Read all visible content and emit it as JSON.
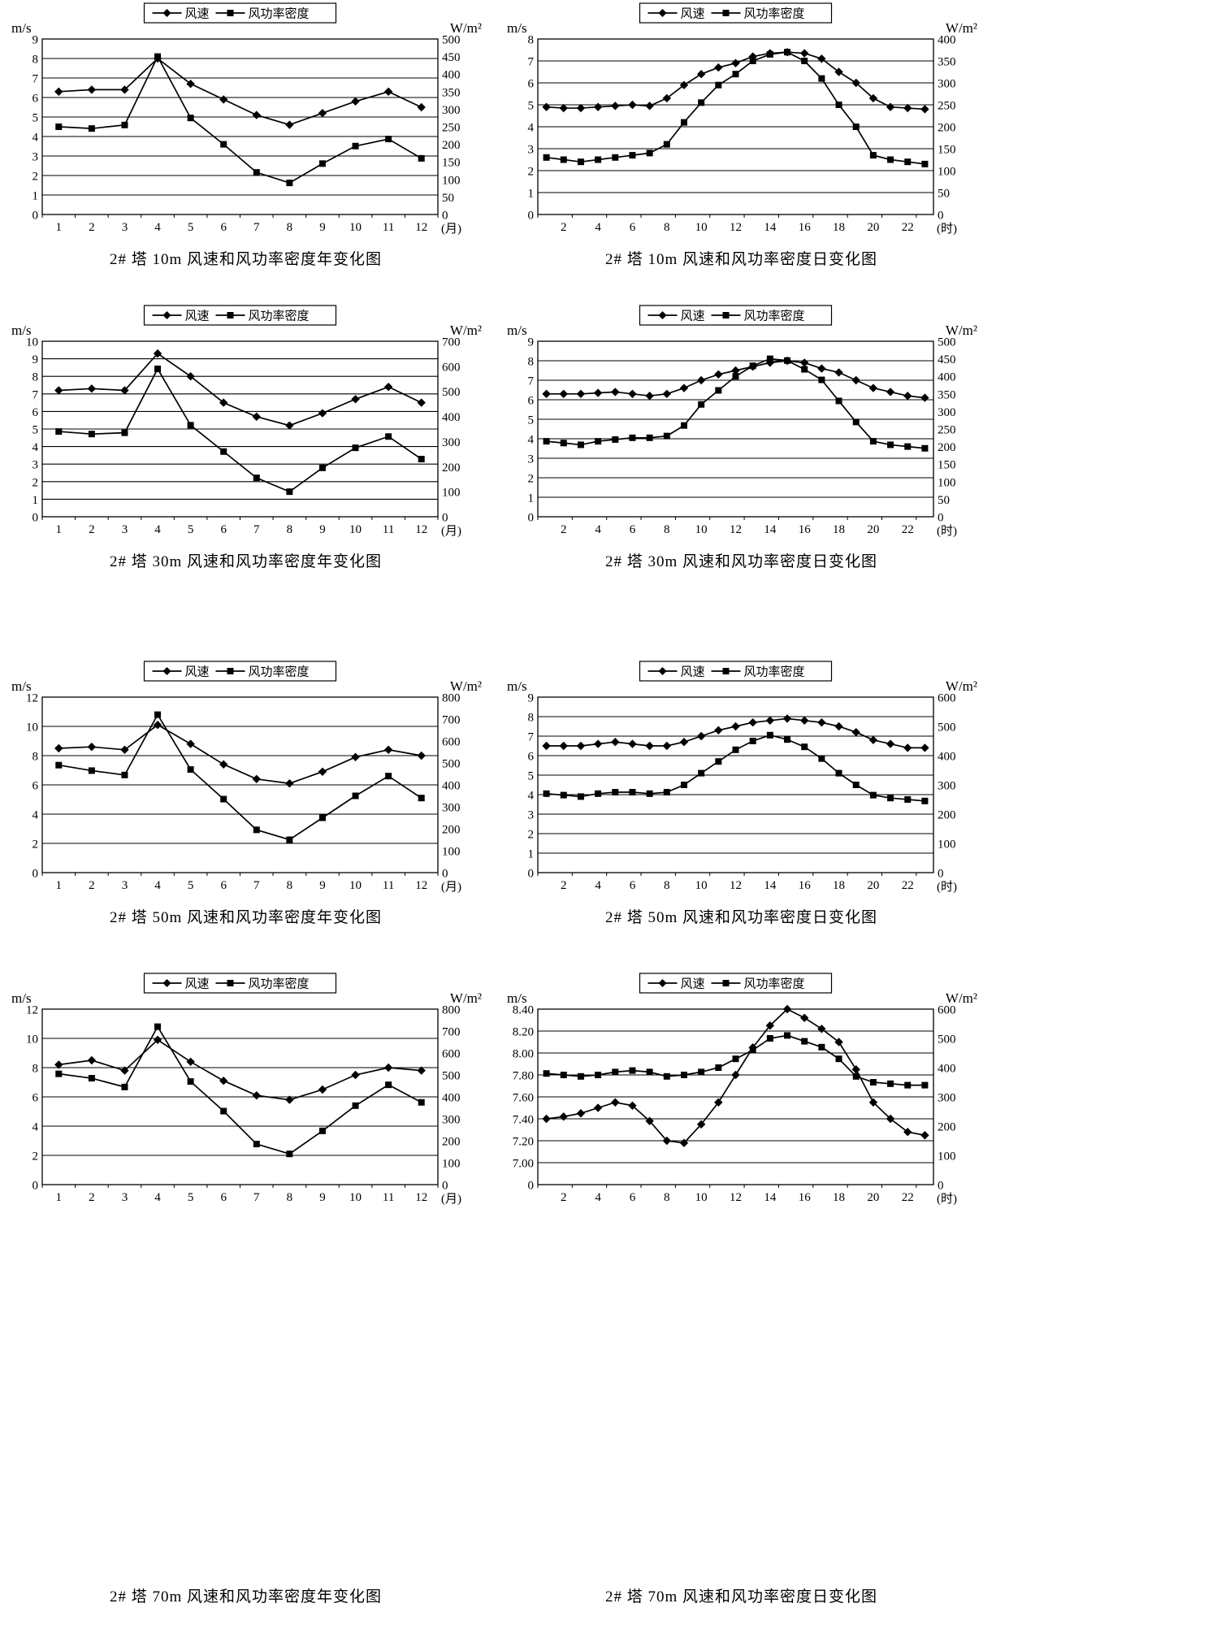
{
  "page": {
    "background": "#ffffff",
    "line_color": "#000000"
  },
  "legend": {
    "speed_label": "风速",
    "power_label": "风功率密度"
  },
  "axis_units": {
    "left": "m/s",
    "right": "W/m²"
  },
  "chart_data": [
    {
      "id": "tower2-10m-yearly",
      "type": "line",
      "title": "2# 塔 10m 风速和风功率密度年变化图",
      "x_unit": "(月)",
      "x": [
        1,
        2,
        3,
        4,
        5,
        6,
        7,
        8,
        9,
        10,
        11,
        12
      ],
      "x_tick_labels": [
        "1",
        "2",
        "3",
        "4",
        "5",
        "6",
        "7",
        "8",
        "9",
        "10",
        "11",
        "12"
      ],
      "left_ticks": [
        0,
        1,
        2,
        3,
        4,
        5,
        6,
        7,
        8,
        9
      ],
      "right_ticks": [
        0,
        50,
        100,
        150,
        200,
        250,
        300,
        350,
        400,
        450,
        500
      ],
      "series": [
        {
          "name": "风速",
          "axis": "left",
          "marker": "diamond",
          "values": [
            6.3,
            6.4,
            6.4,
            8.0,
            6.7,
            5.9,
            5.1,
            4.6,
            5.2,
            5.8,
            6.3,
            5.5
          ]
        },
        {
          "name": "风功率密度",
          "axis": "right",
          "marker": "square",
          "values": [
            250,
            245,
            255,
            450,
            275,
            200,
            120,
            90,
            145,
            195,
            215,
            160
          ]
        }
      ]
    },
    {
      "id": "tower2-10m-daily",
      "type": "line",
      "title": "2# 塔 10m 风速和风功率密度日变化图",
      "x_unit": "(时)",
      "x": [
        1,
        2,
        3,
        4,
        5,
        6,
        7,
        8,
        9,
        10,
        11,
        12,
        13,
        14,
        15,
        16,
        17,
        18,
        19,
        20,
        21,
        22,
        23
      ],
      "x_tick_labels": [
        "2",
        "4",
        "6",
        "8",
        "10",
        "12",
        "14",
        "16",
        "18",
        "20",
        "22"
      ],
      "left_ticks": [
        0,
        1,
        2,
        3,
        4,
        5,
        6,
        7,
        8
      ],
      "right_ticks": [
        0,
        50,
        100,
        150,
        200,
        250,
        300,
        350,
        400
      ],
      "series": [
        {
          "name": "风速",
          "axis": "left",
          "marker": "diamond",
          "values": [
            4.9,
            4.85,
            4.85,
            4.9,
            4.95,
            5.0,
            4.95,
            5.3,
            5.9,
            6.4,
            6.7,
            6.9,
            7.2,
            7.35,
            7.4,
            7.35,
            7.1,
            6.5,
            6.0,
            5.3,
            4.9,
            4.85,
            4.8
          ]
        },
        {
          "name": "风功率密度",
          "axis": "right",
          "marker": "square",
          "values": [
            130,
            125,
            120,
            125,
            130,
            135,
            140,
            160,
            210,
            255,
            295,
            320,
            350,
            365,
            370,
            350,
            310,
            250,
            200,
            135,
            125,
            120,
            115
          ]
        }
      ]
    },
    {
      "id": "tower2-30m-yearly",
      "type": "line",
      "title": "2# 塔 30m 风速和风功率密度年变化图",
      "x_unit": "(月)",
      "x": [
        1,
        2,
        3,
        4,
        5,
        6,
        7,
        8,
        9,
        10,
        11,
        12
      ],
      "x_tick_labels": [
        "1",
        "2",
        "3",
        "4",
        "5",
        "6",
        "7",
        "8",
        "9",
        "10",
        "11",
        "12"
      ],
      "left_ticks": [
        0,
        1,
        2,
        3,
        4,
        5,
        6,
        7,
        8,
        9,
        10
      ],
      "right_ticks": [
        0,
        100,
        200,
        300,
        400,
        500,
        600,
        700
      ],
      "series": [
        {
          "name": "风速",
          "axis": "left",
          "marker": "diamond",
          "values": [
            7.2,
            7.3,
            7.2,
            9.3,
            8.0,
            6.5,
            5.7,
            5.2,
            5.9,
            6.7,
            7.4,
            6.5
          ]
        },
        {
          "name": "风功率密度",
          "axis": "right",
          "marker": "square",
          "values": [
            340,
            330,
            335,
            590,
            365,
            260,
            155,
            100,
            195,
            275,
            320,
            230
          ]
        }
      ]
    },
    {
      "id": "tower2-30m-daily",
      "type": "line",
      "title": "2# 塔 30m 风速和风功率密度日变化图",
      "x_unit": "(时)",
      "x": [
        1,
        2,
        3,
        4,
        5,
        6,
        7,
        8,
        9,
        10,
        11,
        12,
        13,
        14,
        15,
        16,
        17,
        18,
        19,
        20,
        21,
        22,
        23
      ],
      "x_tick_labels": [
        "2",
        "4",
        "6",
        "8",
        "10",
        "12",
        "14",
        "16",
        "18",
        "20",
        "22"
      ],
      "left_ticks": [
        0,
        1,
        2,
        3,
        4,
        5,
        6,
        7,
        8,
        9
      ],
      "right_ticks": [
        0,
        50,
        100,
        150,
        200,
        250,
        300,
        350,
        400,
        450,
        500
      ],
      "series": [
        {
          "name": "风速",
          "axis": "left",
          "marker": "diamond",
          "values": [
            6.3,
            6.3,
            6.3,
            6.35,
            6.4,
            6.3,
            6.2,
            6.3,
            6.6,
            7.0,
            7.3,
            7.5,
            7.7,
            7.9,
            8.0,
            7.9,
            7.6,
            7.4,
            7.0,
            6.6,
            6.4,
            6.2,
            6.1
          ]
        },
        {
          "name": "风功率密度",
          "axis": "right",
          "marker": "square",
          "values": [
            215,
            210,
            205,
            215,
            220,
            225,
            225,
            230,
            260,
            320,
            360,
            400,
            430,
            450,
            445,
            420,
            390,
            330,
            270,
            215,
            205,
            200,
            195
          ]
        }
      ]
    },
    {
      "id": "tower2-50m-yearly",
      "type": "line",
      "title": "2# 塔 50m 风速和风功率密度年变化图",
      "x_unit": "(月)",
      "x": [
        1,
        2,
        3,
        4,
        5,
        6,
        7,
        8,
        9,
        10,
        11,
        12
      ],
      "x_tick_labels": [
        "1",
        "2",
        "3",
        "4",
        "5",
        "6",
        "7",
        "8",
        "9",
        "10",
        "11",
        "12"
      ],
      "left_ticks": [
        0,
        2,
        4,
        6,
        8,
        10,
        12
      ],
      "right_ticks": [
        0,
        100,
        200,
        300,
        400,
        500,
        600,
        700,
        800
      ],
      "series": [
        {
          "name": "风速",
          "axis": "left",
          "marker": "diamond",
          "values": [
            8.5,
            8.6,
            8.4,
            10.1,
            8.8,
            7.4,
            6.4,
            6.1,
            6.9,
            7.9,
            8.4,
            8.0
          ]
        },
        {
          "name": "风功率密度",
          "axis": "right",
          "marker": "square",
          "values": [
            490,
            465,
            445,
            720,
            470,
            335,
            195,
            150,
            250,
            350,
            440,
            340
          ]
        }
      ]
    },
    {
      "id": "tower2-50m-daily",
      "type": "line",
      "title": "2# 塔 50m 风速和风功率密度日变化图",
      "x_unit": "(时)",
      "x": [
        1,
        2,
        3,
        4,
        5,
        6,
        7,
        8,
        9,
        10,
        11,
        12,
        13,
        14,
        15,
        16,
        17,
        18,
        19,
        20,
        21,
        22,
        23
      ],
      "x_tick_labels": [
        "2",
        "4",
        "6",
        "8",
        "10",
        "12",
        "14",
        "16",
        "18",
        "20",
        "22"
      ],
      "left_ticks": [
        0,
        1,
        2,
        3,
        4,
        5,
        6,
        7,
        8,
        9
      ],
      "right_ticks": [
        0,
        100,
        200,
        300,
        400,
        500,
        600
      ],
      "series": [
        {
          "name": "风速",
          "axis": "left",
          "marker": "diamond",
          "values": [
            6.5,
            6.5,
            6.5,
            6.6,
            6.7,
            6.6,
            6.5,
            6.5,
            6.7,
            7.0,
            7.3,
            7.5,
            7.7,
            7.8,
            7.9,
            7.8,
            7.7,
            7.5,
            7.2,
            6.8,
            6.6,
            6.4,
            6.4
          ]
        },
        {
          "name": "风功率密度",
          "axis": "right",
          "marker": "square",
          "values": [
            270,
            265,
            260,
            270,
            275,
            275,
            270,
            275,
            300,
            340,
            380,
            420,
            450,
            470,
            455,
            430,
            390,
            340,
            300,
            265,
            255,
            250,
            245
          ]
        }
      ]
    },
    {
      "id": "tower2-70m-yearly",
      "type": "line",
      "title": "2# 塔 70m 风速和风功率密度年变化图",
      "x_unit": "(月)",
      "x": [
        1,
        2,
        3,
        4,
        5,
        6,
        7,
        8,
        9,
        10,
        11,
        12
      ],
      "x_tick_labels": [
        "1",
        "2",
        "3",
        "4",
        "5",
        "6",
        "7",
        "8",
        "9",
        "10",
        "11",
        "12"
      ],
      "left_ticks": [
        0,
        2,
        4,
        6,
        8,
        10,
        12
      ],
      "right_ticks": [
        0,
        100,
        200,
        300,
        400,
        500,
        600,
        700,
        800
      ],
      "series": [
        {
          "name": "风速",
          "axis": "left",
          "marker": "diamond",
          "values": [
            8.2,
            8.5,
            7.8,
            9.9,
            8.4,
            7.1,
            6.1,
            5.8,
            6.5,
            7.5,
            8.0,
            7.8
          ]
        },
        {
          "name": "风功率密度",
          "axis": "right",
          "marker": "square",
          "values": [
            505,
            485,
            445,
            720,
            470,
            335,
            185,
            140,
            245,
            360,
            455,
            375
          ]
        }
      ]
    },
    {
      "id": "tower2-70m-daily",
      "type": "line",
      "title": "2# 塔 70m 风速和风功率密度日变化图",
      "x_unit": "(时)",
      "x": [
        1,
        2,
        3,
        4,
        5,
        6,
        7,
        8,
        9,
        10,
        11,
        12,
        13,
        14,
        15,
        16,
        17,
        18,
        19,
        20,
        21,
        22,
        23
      ],
      "x_tick_labels": [
        "2",
        "4",
        "6",
        "8",
        "10",
        "12",
        "14",
        "16",
        "18",
        "20",
        "22"
      ],
      "left_ticks": [
        0,
        7.0,
        7.2,
        7.4,
        7.6,
        7.8,
        8.0,
        8.2,
        8.4
      ],
      "left_labels": [
        "0",
        "7.00",
        "7.20",
        "7.40",
        "7.60",
        "7.80",
        "8.00",
        "8.20",
        "8.40"
      ],
      "right_ticks": [
        0,
        100,
        200,
        300,
        400,
        500,
        600
      ],
      "series": [
        {
          "name": "风速",
          "axis": "left",
          "marker": "diamond",
          "values": [
            7.4,
            7.42,
            7.45,
            7.5,
            7.55,
            7.52,
            7.38,
            7.2,
            7.18,
            7.35,
            7.55,
            7.8,
            8.05,
            8.25,
            8.4,
            8.32,
            8.22,
            8.1,
            7.85,
            7.55,
            7.4,
            7.28,
            7.25
          ]
        },
        {
          "name": "风功率密度",
          "axis": "right",
          "marker": "square",
          "values": [
            380,
            375,
            370,
            375,
            385,
            390,
            385,
            370,
            375,
            385,
            400,
            430,
            460,
            500,
            510,
            490,
            470,
            430,
            370,
            350,
            345,
            340,
            340
          ]
        }
      ]
    }
  ]
}
